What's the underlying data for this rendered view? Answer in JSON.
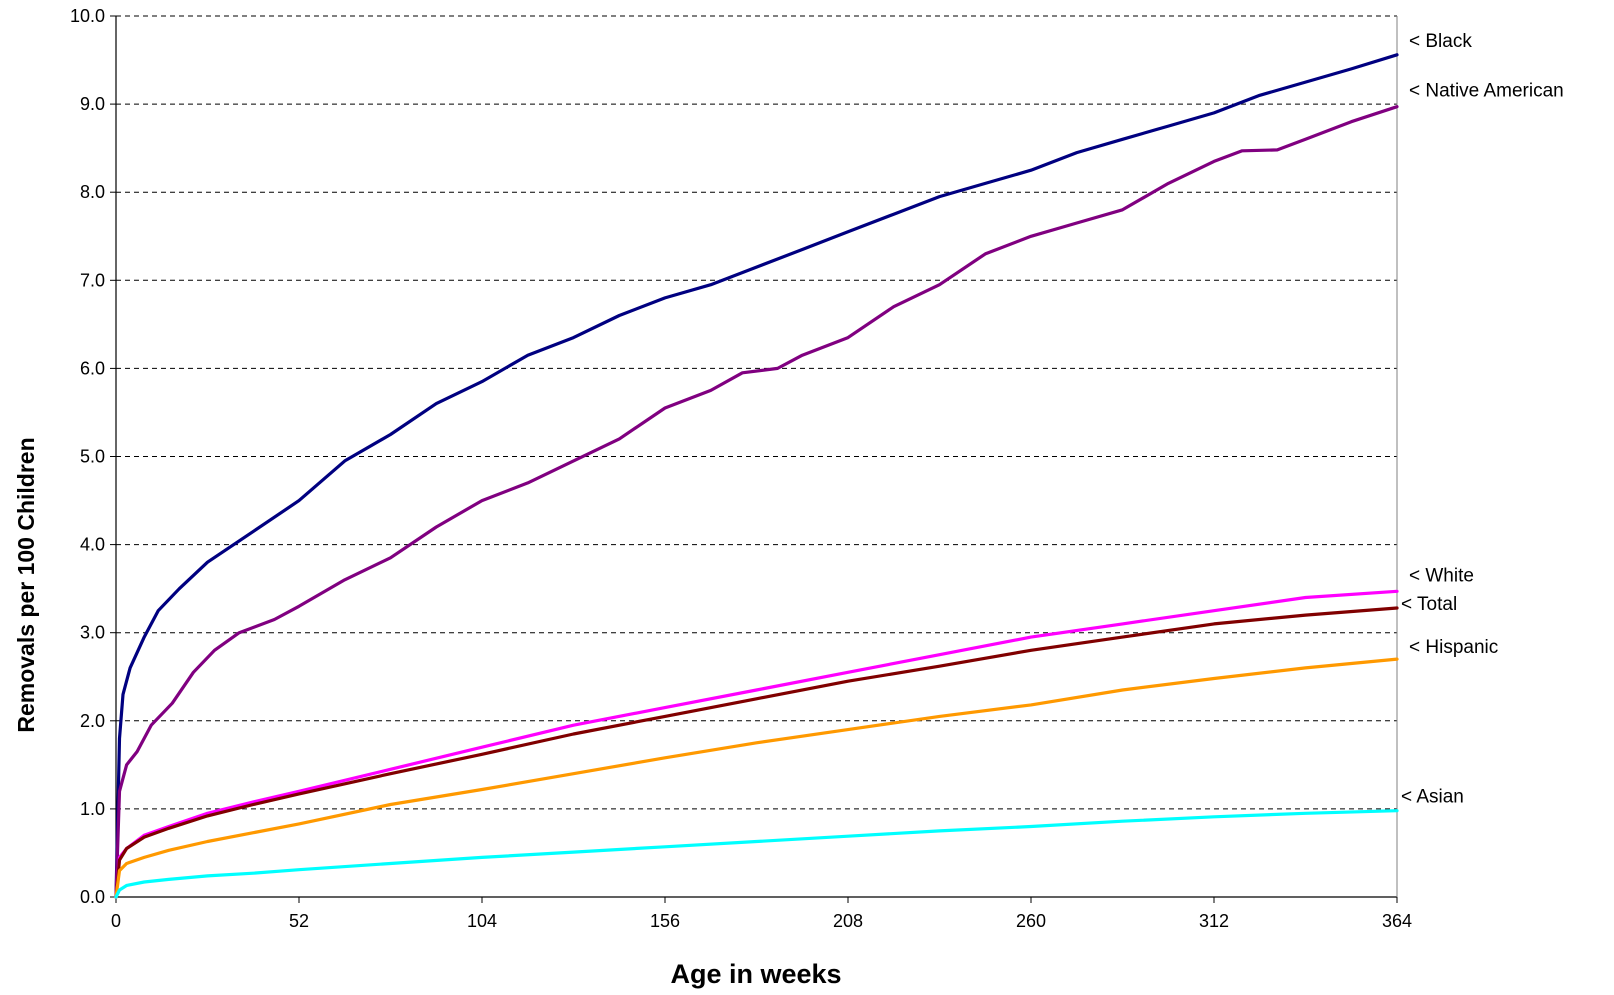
{
  "chart_data": {
    "type": "line",
    "title": "",
    "xlabel": "Age in weeks",
    "ylabel": "Removals per 100 Children",
    "xlim": [
      0,
      364
    ],
    "ylim": [
      0,
      10
    ],
    "xticks": [
      0,
      52,
      104,
      156,
      208,
      260,
      312,
      364
    ],
    "xtick_labels": [
      "0",
      "52",
      "104",
      "156",
      "208",
      "260",
      "312",
      "364"
    ],
    "yticks": [
      0,
      1,
      2,
      3,
      4,
      5,
      6,
      7,
      8,
      9,
      10
    ],
    "ytick_labels": [
      "0.0",
      "1.0",
      "2.0",
      "3.0",
      "4.0",
      "5.0",
      "6.0",
      "7.0",
      "8.0",
      "9.0",
      "10.0"
    ],
    "grid": "horizontal dashed",
    "legend": "end-of-line labels",
    "series": [
      {
        "name": "< Black",
        "color": "#000080",
        "points": [
          [
            0,
            0
          ],
          [
            1,
            1.8
          ],
          [
            2,
            2.3
          ],
          [
            4,
            2.6
          ],
          [
            8,
            2.95
          ],
          [
            12,
            3.25
          ],
          [
            18,
            3.5
          ],
          [
            26,
            3.8
          ],
          [
            39,
            4.15
          ],
          [
            52,
            4.5
          ],
          [
            65,
            4.95
          ],
          [
            78,
            5.25
          ],
          [
            91,
            5.6
          ],
          [
            104,
            5.85
          ],
          [
            117,
            6.15
          ],
          [
            130,
            6.35
          ],
          [
            143,
            6.6
          ],
          [
            156,
            6.8
          ],
          [
            169,
            6.95
          ],
          [
            182,
            7.15
          ],
          [
            195,
            7.35
          ],
          [
            208,
            7.55
          ],
          [
            221,
            7.75
          ],
          [
            234,
            7.95
          ],
          [
            247,
            8.1
          ],
          [
            260,
            8.25
          ],
          [
            273,
            8.45
          ],
          [
            286,
            8.6
          ],
          [
            299,
            8.75
          ],
          [
            312,
            8.9
          ],
          [
            325,
            9.1
          ],
          [
            338,
            9.25
          ],
          [
            351,
            9.4
          ],
          [
            364,
            9.56
          ]
        ]
      },
      {
        "name": "< Native American",
        "color": "#800080",
        "points": [
          [
            0,
            0
          ],
          [
            1,
            1.2
          ],
          [
            3,
            1.5
          ],
          [
            6,
            1.65
          ],
          [
            10,
            1.95
          ],
          [
            16,
            2.2
          ],
          [
            22,
            2.55
          ],
          [
            28,
            2.8
          ],
          [
            35,
            3.0
          ],
          [
            45,
            3.15
          ],
          [
            52,
            3.3
          ],
          [
            65,
            3.6
          ],
          [
            78,
            3.85
          ],
          [
            91,
            4.2
          ],
          [
            104,
            4.5
          ],
          [
            117,
            4.7
          ],
          [
            130,
            4.95
          ],
          [
            143,
            5.2
          ],
          [
            156,
            5.55
          ],
          [
            169,
            5.75
          ],
          [
            178,
            5.95
          ],
          [
            188,
            6.0
          ],
          [
            195,
            6.15
          ],
          [
            208,
            6.35
          ],
          [
            221,
            6.7
          ],
          [
            234,
            6.95
          ],
          [
            247,
            7.3
          ],
          [
            260,
            7.5
          ],
          [
            273,
            7.65
          ],
          [
            286,
            7.8
          ],
          [
            299,
            8.1
          ],
          [
            312,
            8.35
          ],
          [
            320,
            8.47
          ],
          [
            330,
            8.48
          ],
          [
            338,
            8.6
          ],
          [
            351,
            8.8
          ],
          [
            364,
            8.97
          ]
        ]
      },
      {
        "name": "< White",
        "color": "#ff00ff",
        "points": [
          [
            0,
            0
          ],
          [
            1,
            0.45
          ],
          [
            3,
            0.55
          ],
          [
            8,
            0.7
          ],
          [
            15,
            0.8
          ],
          [
            26,
            0.95
          ],
          [
            39,
            1.08
          ],
          [
            52,
            1.2
          ],
          [
            78,
            1.45
          ],
          [
            104,
            1.7
          ],
          [
            130,
            1.95
          ],
          [
            156,
            2.15
          ],
          [
            182,
            2.35
          ],
          [
            208,
            2.55
          ],
          [
            234,
            2.75
          ],
          [
            260,
            2.95
          ],
          [
            286,
            3.1
          ],
          [
            312,
            3.25
          ],
          [
            338,
            3.4
          ],
          [
            364,
            3.47
          ]
        ]
      },
      {
        "name": "< Total",
        "color": "#800000",
        "points": [
          [
            0,
            0
          ],
          [
            1,
            0.42
          ],
          [
            3,
            0.55
          ],
          [
            8,
            0.68
          ],
          [
            15,
            0.78
          ],
          [
            26,
            0.92
          ],
          [
            39,
            1.05
          ],
          [
            52,
            1.17
          ],
          [
            78,
            1.4
          ],
          [
            104,
            1.62
          ],
          [
            130,
            1.85
          ],
          [
            156,
            2.05
          ],
          [
            182,
            2.25
          ],
          [
            208,
            2.45
          ],
          [
            234,
            2.62
          ],
          [
            260,
            2.8
          ],
          [
            286,
            2.95
          ],
          [
            312,
            3.1
          ],
          [
            338,
            3.2
          ],
          [
            364,
            3.28
          ]
        ]
      },
      {
        "name": "< Hispanic",
        "color": "#ff9900",
        "points": [
          [
            0,
            0
          ],
          [
            1,
            0.3
          ],
          [
            3,
            0.38
          ],
          [
            8,
            0.45
          ],
          [
            15,
            0.53
          ],
          [
            26,
            0.63
          ],
          [
            39,
            0.73
          ],
          [
            52,
            0.83
          ],
          [
            78,
            1.05
          ],
          [
            104,
            1.22
          ],
          [
            130,
            1.4
          ],
          [
            156,
            1.58
          ],
          [
            182,
            1.75
          ],
          [
            208,
            1.9
          ],
          [
            234,
            2.05
          ],
          [
            260,
            2.18
          ],
          [
            286,
            2.35
          ],
          [
            312,
            2.48
          ],
          [
            338,
            2.6
          ],
          [
            364,
            2.7
          ]
        ]
      },
      {
        "name": "< Asian",
        "color": "#00ffff",
        "points": [
          [
            0,
            0
          ],
          [
            1,
            0.08
          ],
          [
            3,
            0.13
          ],
          [
            8,
            0.17
          ],
          [
            15,
            0.2
          ],
          [
            26,
            0.24
          ],
          [
            39,
            0.27
          ],
          [
            52,
            0.31
          ],
          [
            78,
            0.38
          ],
          [
            104,
            0.45
          ],
          [
            130,
            0.51
          ],
          [
            156,
            0.57
          ],
          [
            182,
            0.63
          ],
          [
            208,
            0.69
          ],
          [
            234,
            0.75
          ],
          [
            260,
            0.8
          ],
          [
            286,
            0.86
          ],
          [
            312,
            0.91
          ],
          [
            338,
            0.95
          ],
          [
            364,
            0.98
          ]
        ]
      }
    ]
  }
}
